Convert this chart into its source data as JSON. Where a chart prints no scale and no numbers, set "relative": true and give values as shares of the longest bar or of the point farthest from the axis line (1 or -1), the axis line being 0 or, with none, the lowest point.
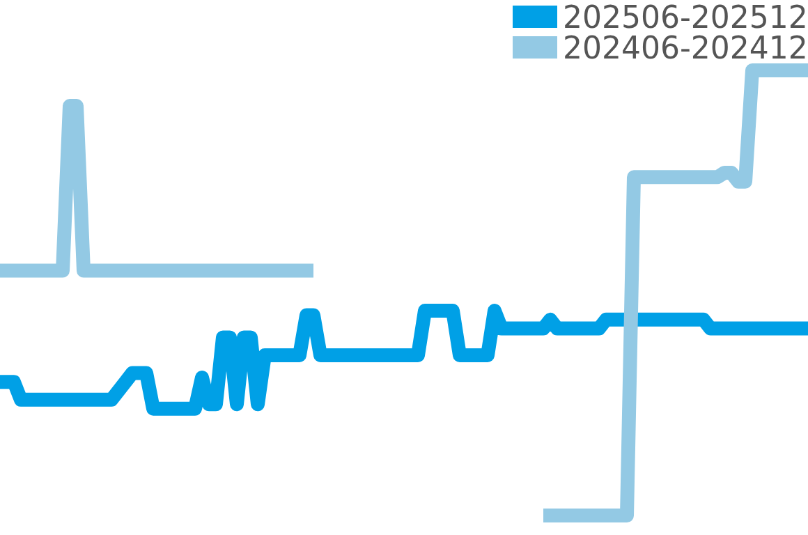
{
  "chart_data": {
    "type": "line",
    "relative": true,
    "legend": "top right",
    "categories": [
      null,
      null,
      null,
      null,
      null,
      null,
      null,
      null,
      null,
      null,
      null,
      null,
      null,
      null,
      null,
      null,
      null,
      null,
      null,
      null,
      null,
      null,
      null,
      null,
      null,
      null,
      null,
      null,
      null,
      null,
      null,
      null,
      null,
      null,
      null,
      null,
      null,
      null,
      null,
      null,
      null,
      null,
      null,
      null,
      null,
      null,
      null,
      null,
      null,
      null,
      null,
      null,
      null,
      null,
      null,
      null,
      null,
      null,
      null,
      null,
      null,
      null,
      null,
      null,
      null,
      null,
      null,
      null,
      null,
      null,
      null,
      null,
      null,
      null,
      null,
      null,
      null,
      null,
      null,
      null,
      null,
      null,
      null,
      null,
      null,
      null,
      null,
      null,
      null,
      null,
      null,
      null,
      null,
      null,
      null,
      null,
      null,
      null,
      null,
      null,
      null,
      null,
      null,
      null,
      null,
      null,
      null,
      null,
      null,
      null,
      null,
      null,
      null,
      null,
      null,
      null,
      null
    ],
    "series": [
      {
        "name": "202506-202512",
        "color": "#00a0e6",
        "values": [
          0.3,
          0.3,
          0.3,
          0.26,
          0.26,
          0.26,
          0.26,
          0.26,
          0.26,
          0.26,
          0.26,
          0.26,
          0.26,
          0.26,
          0.26,
          0.26,
          0.26,
          0.28,
          0.3,
          0.32,
          0.32,
          0.32,
          0.24,
          0.24,
          0.24,
          0.24,
          0.24,
          0.24,
          0.24,
          0.31,
          0.25,
          0.25,
          0.4,
          0.4,
          0.25,
          0.4,
          0.4,
          0.25,
          0.36,
          0.36,
          0.36,
          0.36,
          0.36,
          0.36,
          0.45,
          0.45,
          0.36,
          0.36,
          0.36,
          0.36,
          0.36,
          0.36,
          0.36,
          0.36,
          0.36,
          0.36,
          0.36,
          0.36,
          0.36,
          0.36,
          0.36,
          0.46,
          0.46,
          0.46,
          0.46,
          0.46,
          0.36,
          0.36,
          0.36,
          0.36,
          0.36,
          0.46,
          0.42,
          0.42,
          0.42,
          0.42,
          0.42,
          0.42,
          0.42,
          0.44,
          0.42,
          0.42,
          0.42,
          0.42,
          0.42,
          0.42,
          0.42,
          0.44,
          0.44,
          0.44,
          0.44,
          0.44,
          0.44,
          0.44,
          0.44,
          0.44,
          0.44,
          0.44,
          0.44,
          0.44,
          0.44,
          0.44,
          0.42,
          0.42,
          0.42,
          0.42,
          0.42,
          0.42,
          0.42,
          0.42,
          0.42,
          0.42,
          0.42,
          0.42,
          0.42,
          0.42,
          0.42
        ]
      },
      {
        "name": "202406-202412",
        "color": "#93c9e4",
        "values": [
          0.55,
          0.55,
          0.55,
          0.55,
          0.55,
          0.55,
          0.55,
          0.55,
          0.55,
          0.55,
          0.92,
          0.92,
          0.55,
          0.55,
          0.55,
          0.55,
          0.55,
          0.55,
          0.55,
          0.55,
          0.55,
          0.55,
          0.55,
          0.55,
          0.55,
          0.55,
          0.55,
          0.55,
          0.55,
          0.55,
          0.55,
          0.55,
          0.55,
          0.55,
          0.55,
          0.55,
          0.55,
          0.55,
          0.55,
          0.55,
          0.55,
          0.55,
          0.55,
          0.55,
          0.55,
          0.55,
          null,
          null,
          null,
          null,
          null,
          null,
          null,
          null,
          null,
          null,
          null,
          null,
          null,
          null,
          null,
          null,
          null,
          null,
          null,
          null,
          null,
          null,
          null,
          null,
          null,
          null,
          null,
          null,
          null,
          null,
          null,
          null,
          0,
          0,
          0,
          0,
          0,
          0,
          0,
          0,
          0,
          0,
          0,
          0,
          0,
          0.76,
          0.76,
          0.76,
          0.76,
          0.76,
          0.76,
          0.76,
          0.76,
          0.76,
          0.76,
          0.76,
          0.76,
          0.76,
          0.77,
          0.77,
          0.75,
          0.75,
          1,
          1,
          1,
          1,
          1,
          1,
          1,
          1,
          1
        ]
      }
    ]
  }
}
